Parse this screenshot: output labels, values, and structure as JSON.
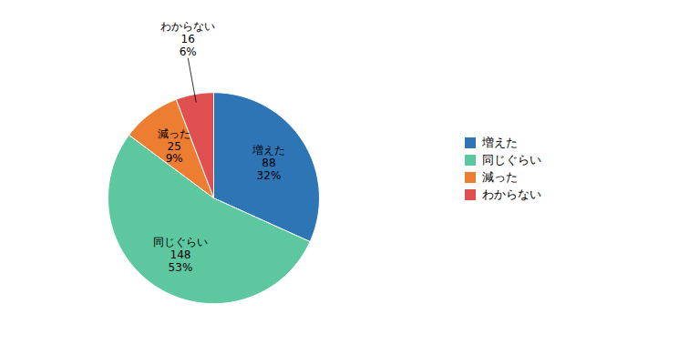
{
  "chart_data": {
    "type": "pie",
    "categories": [
      "増えた",
      "同じぐらい",
      "減った",
      "わからない"
    ],
    "values": [
      88,
      148,
      25,
      16
    ],
    "percentages": [
      {
        "value": 32,
        "label": "32%"
      },
      {
        "value": 53,
        "label": "53%"
      },
      {
        "value": 9,
        "label": "9%"
      },
      {
        "value": 6,
        "label": "6%"
      }
    ],
    "colors": [
      "#2E75B6",
      "#5DC8A0",
      "#ED7D31",
      "#E05050"
    ],
    "data_labels": true,
    "legend": "right"
  }
}
